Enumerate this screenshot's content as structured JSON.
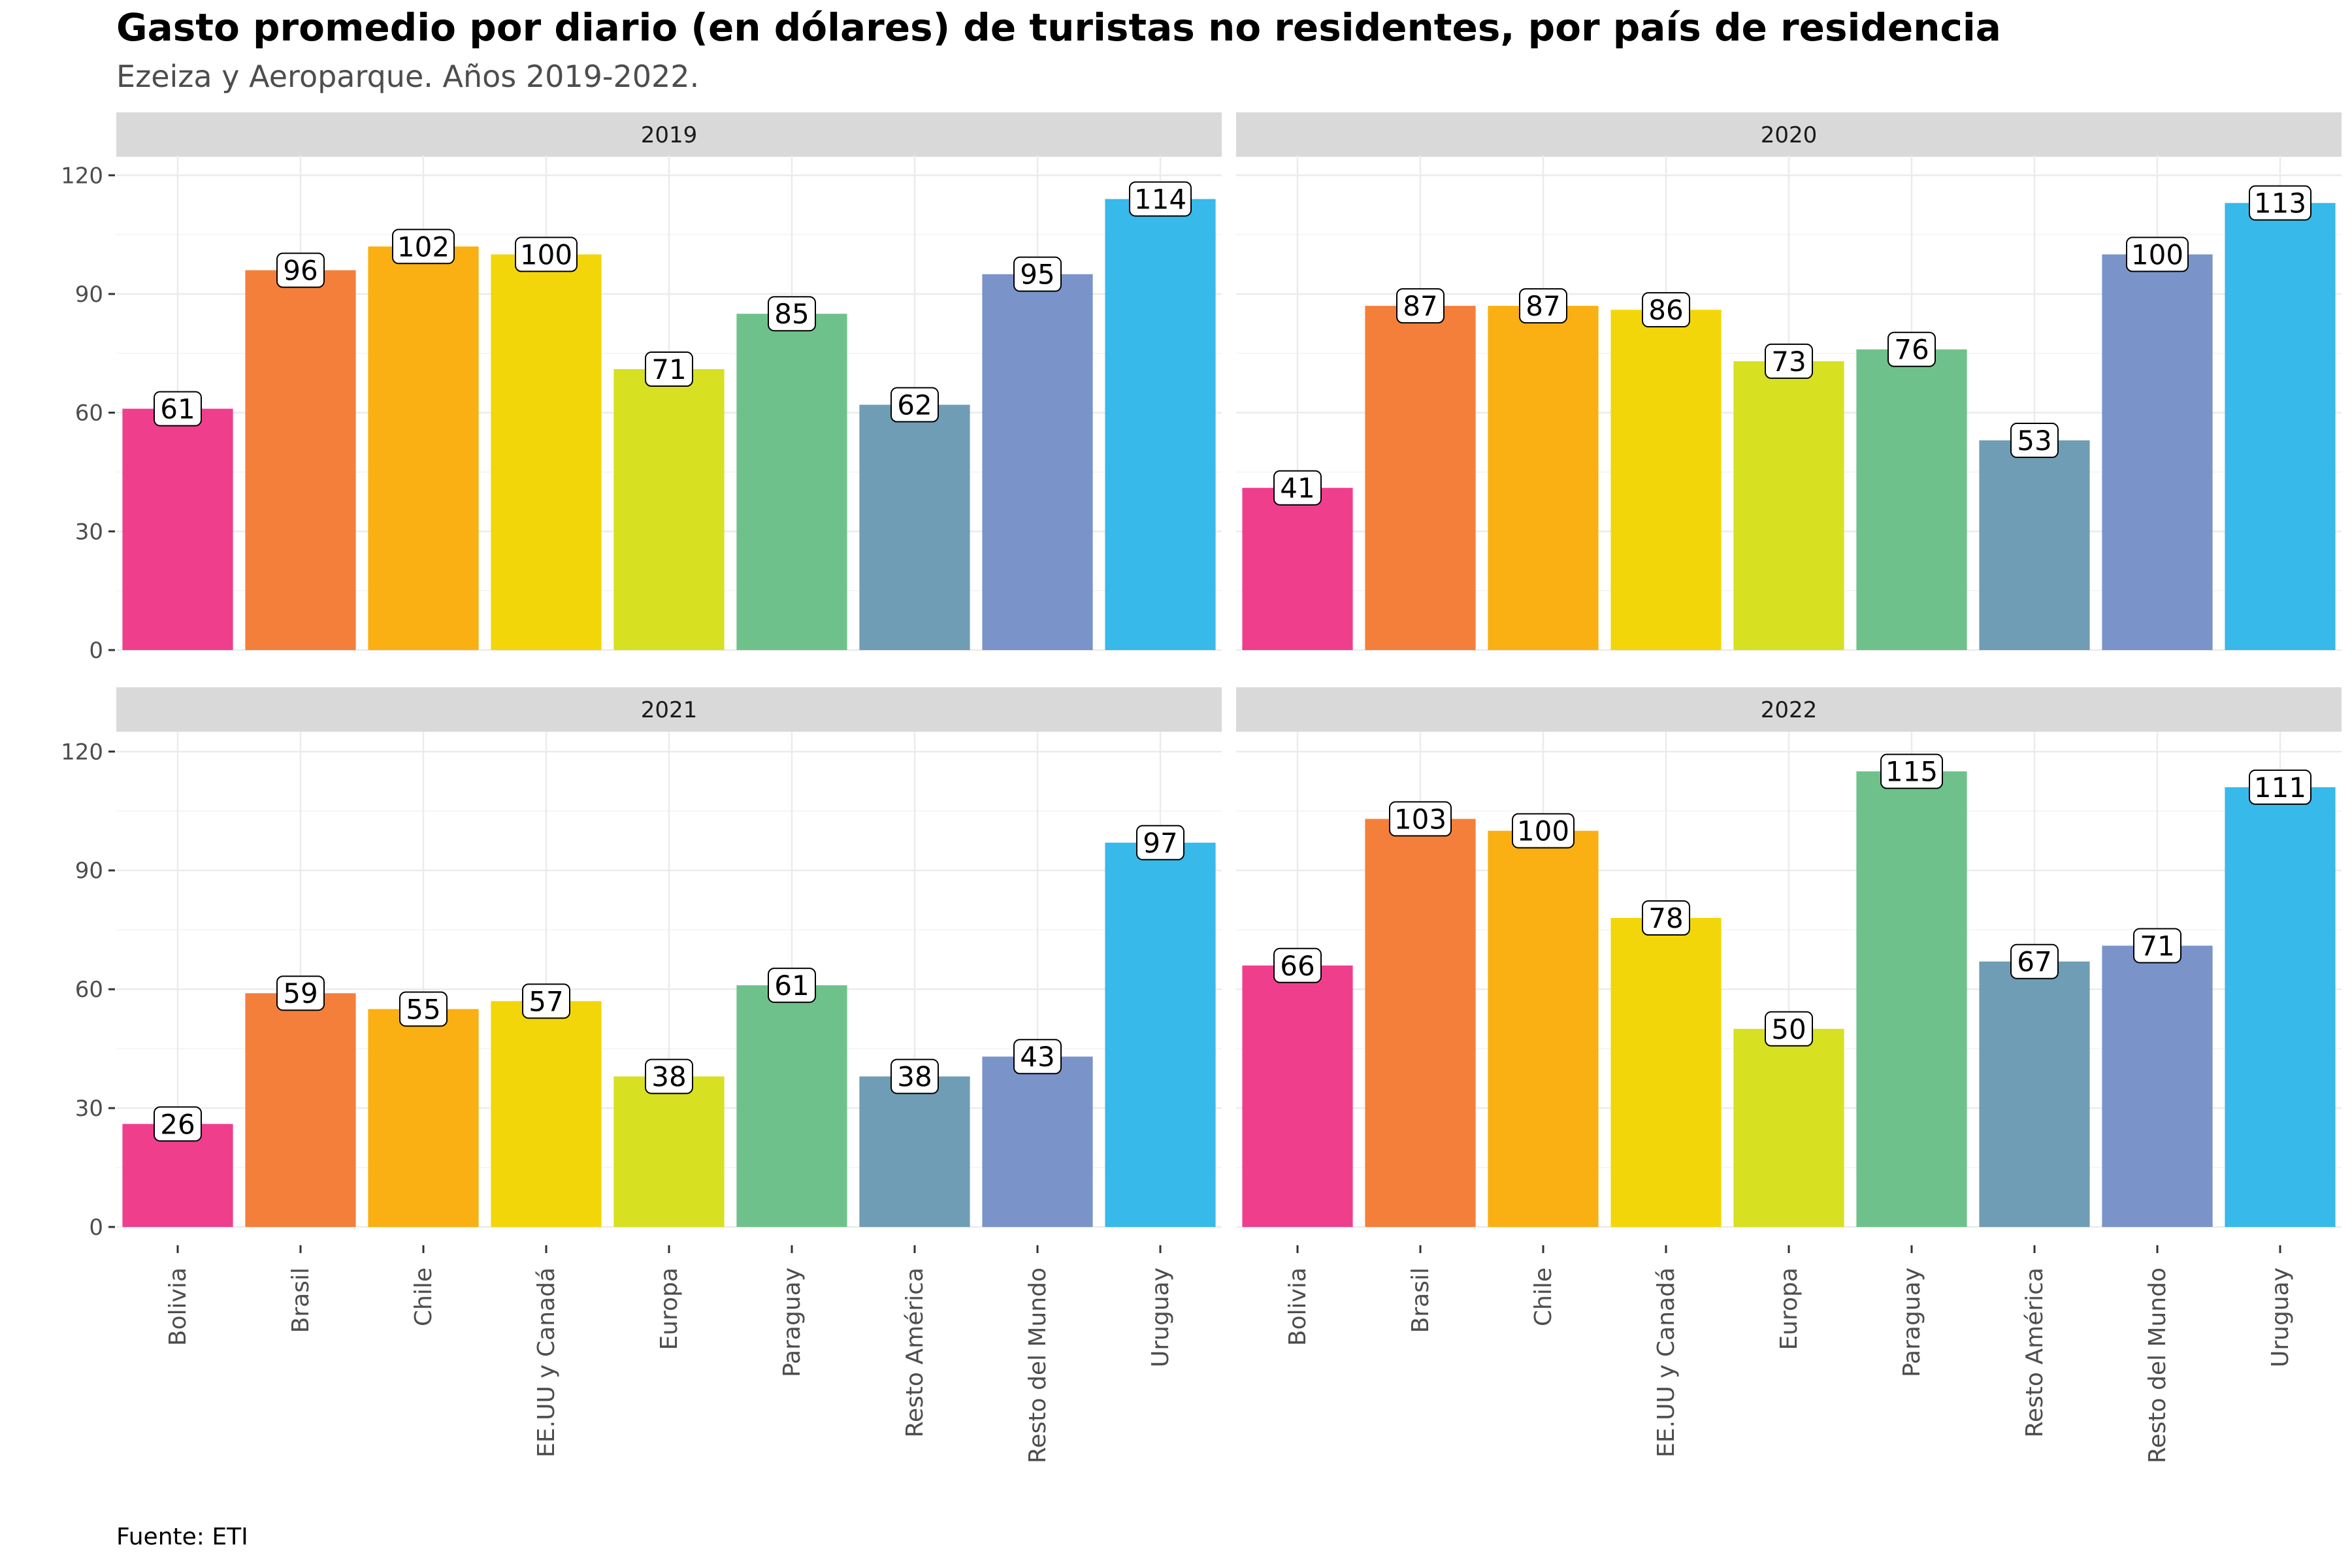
{
  "title": "Gasto promedio por diario (en dólares) de turistas no residentes, por país de residencia",
  "subtitle": "Ezeiza y Aeroparque. Años 2019-2022.",
  "caption": "Fuente: ETI",
  "chart_data": {
    "type": "bar",
    "facet_layout": "2x2 grid",
    "categories": [
      "Bolivia",
      "Brasil",
      "Chile",
      "EE.UU y Canadá",
      "Europa",
      "Paraguay",
      "Resto América",
      "Resto del Mundo",
      "Uruguay"
    ],
    "colors": [
      "#ef3f8c",
      "#f47f3a",
      "#fab012",
      "#f3d60a",
      "#d7e021",
      "#6fc18c",
      "#6f9db5",
      "#7a93c9",
      "#37b9ea"
    ],
    "ylim": [
      0,
      125
    ],
    "yticks": [
      0,
      30,
      60,
      90,
      120
    ],
    "grid": true,
    "data_labels": true,
    "legend": "none",
    "facets": [
      {
        "label": "2019",
        "values": [
          61,
          96,
          102,
          100,
          71,
          85,
          62,
          95,
          114
        ]
      },
      {
        "label": "2020",
        "values": [
          41,
          87,
          87,
          86,
          73,
          76,
          53,
          100,
          113
        ]
      },
      {
        "label": "2021",
        "values": [
          26,
          59,
          55,
          57,
          38,
          61,
          38,
          43,
          97
        ]
      },
      {
        "label": "2022",
        "values": [
          66,
          103,
          100,
          78,
          50,
          115,
          67,
          71,
          111
        ]
      }
    ]
  }
}
